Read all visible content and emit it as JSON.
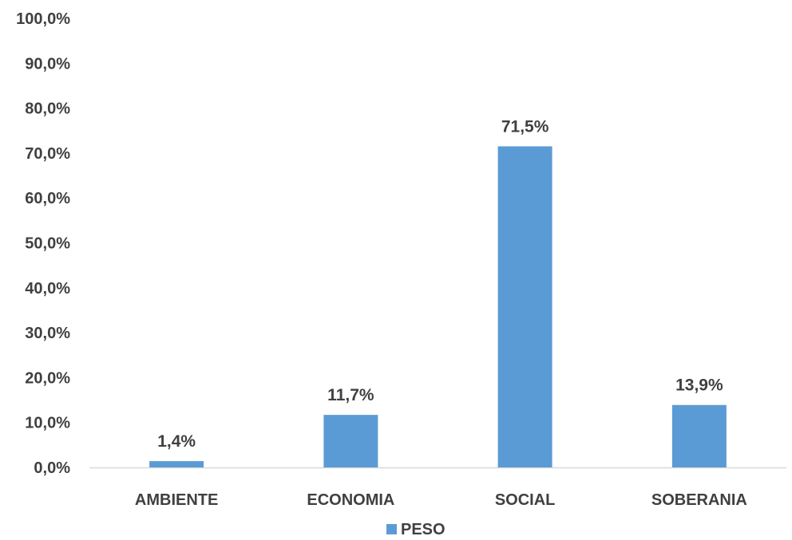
{
  "chart_data": {
    "type": "bar",
    "categories": [
      "AMBIENTE",
      "ECONOMIA",
      "SOCIAL",
      "SOBERANIA"
    ],
    "series": [
      {
        "name": "PESO",
        "values": [
          1.4,
          11.7,
          71.5,
          13.9
        ],
        "labels": [
          "1,4%",
          "11,7%",
          "71,5%",
          "13,9%"
        ],
        "color": "#5B9BD5"
      }
    ],
    "ylim": [
      0,
      100
    ],
    "yticks": [
      0,
      10,
      20,
      30,
      40,
      50,
      60,
      70,
      80,
      90,
      100
    ],
    "ytick_labels": [
      "0,0%",
      "10,0%",
      "20,0%",
      "30,0%",
      "40,0%",
      "50,0%",
      "60,0%",
      "70,0%",
      "80,0%",
      "90,0%",
      "100,0%"
    ],
    "grid": false,
    "legend_position": "bottom",
    "axis_color": "#D9D9D9",
    "text_color": "#404040"
  }
}
